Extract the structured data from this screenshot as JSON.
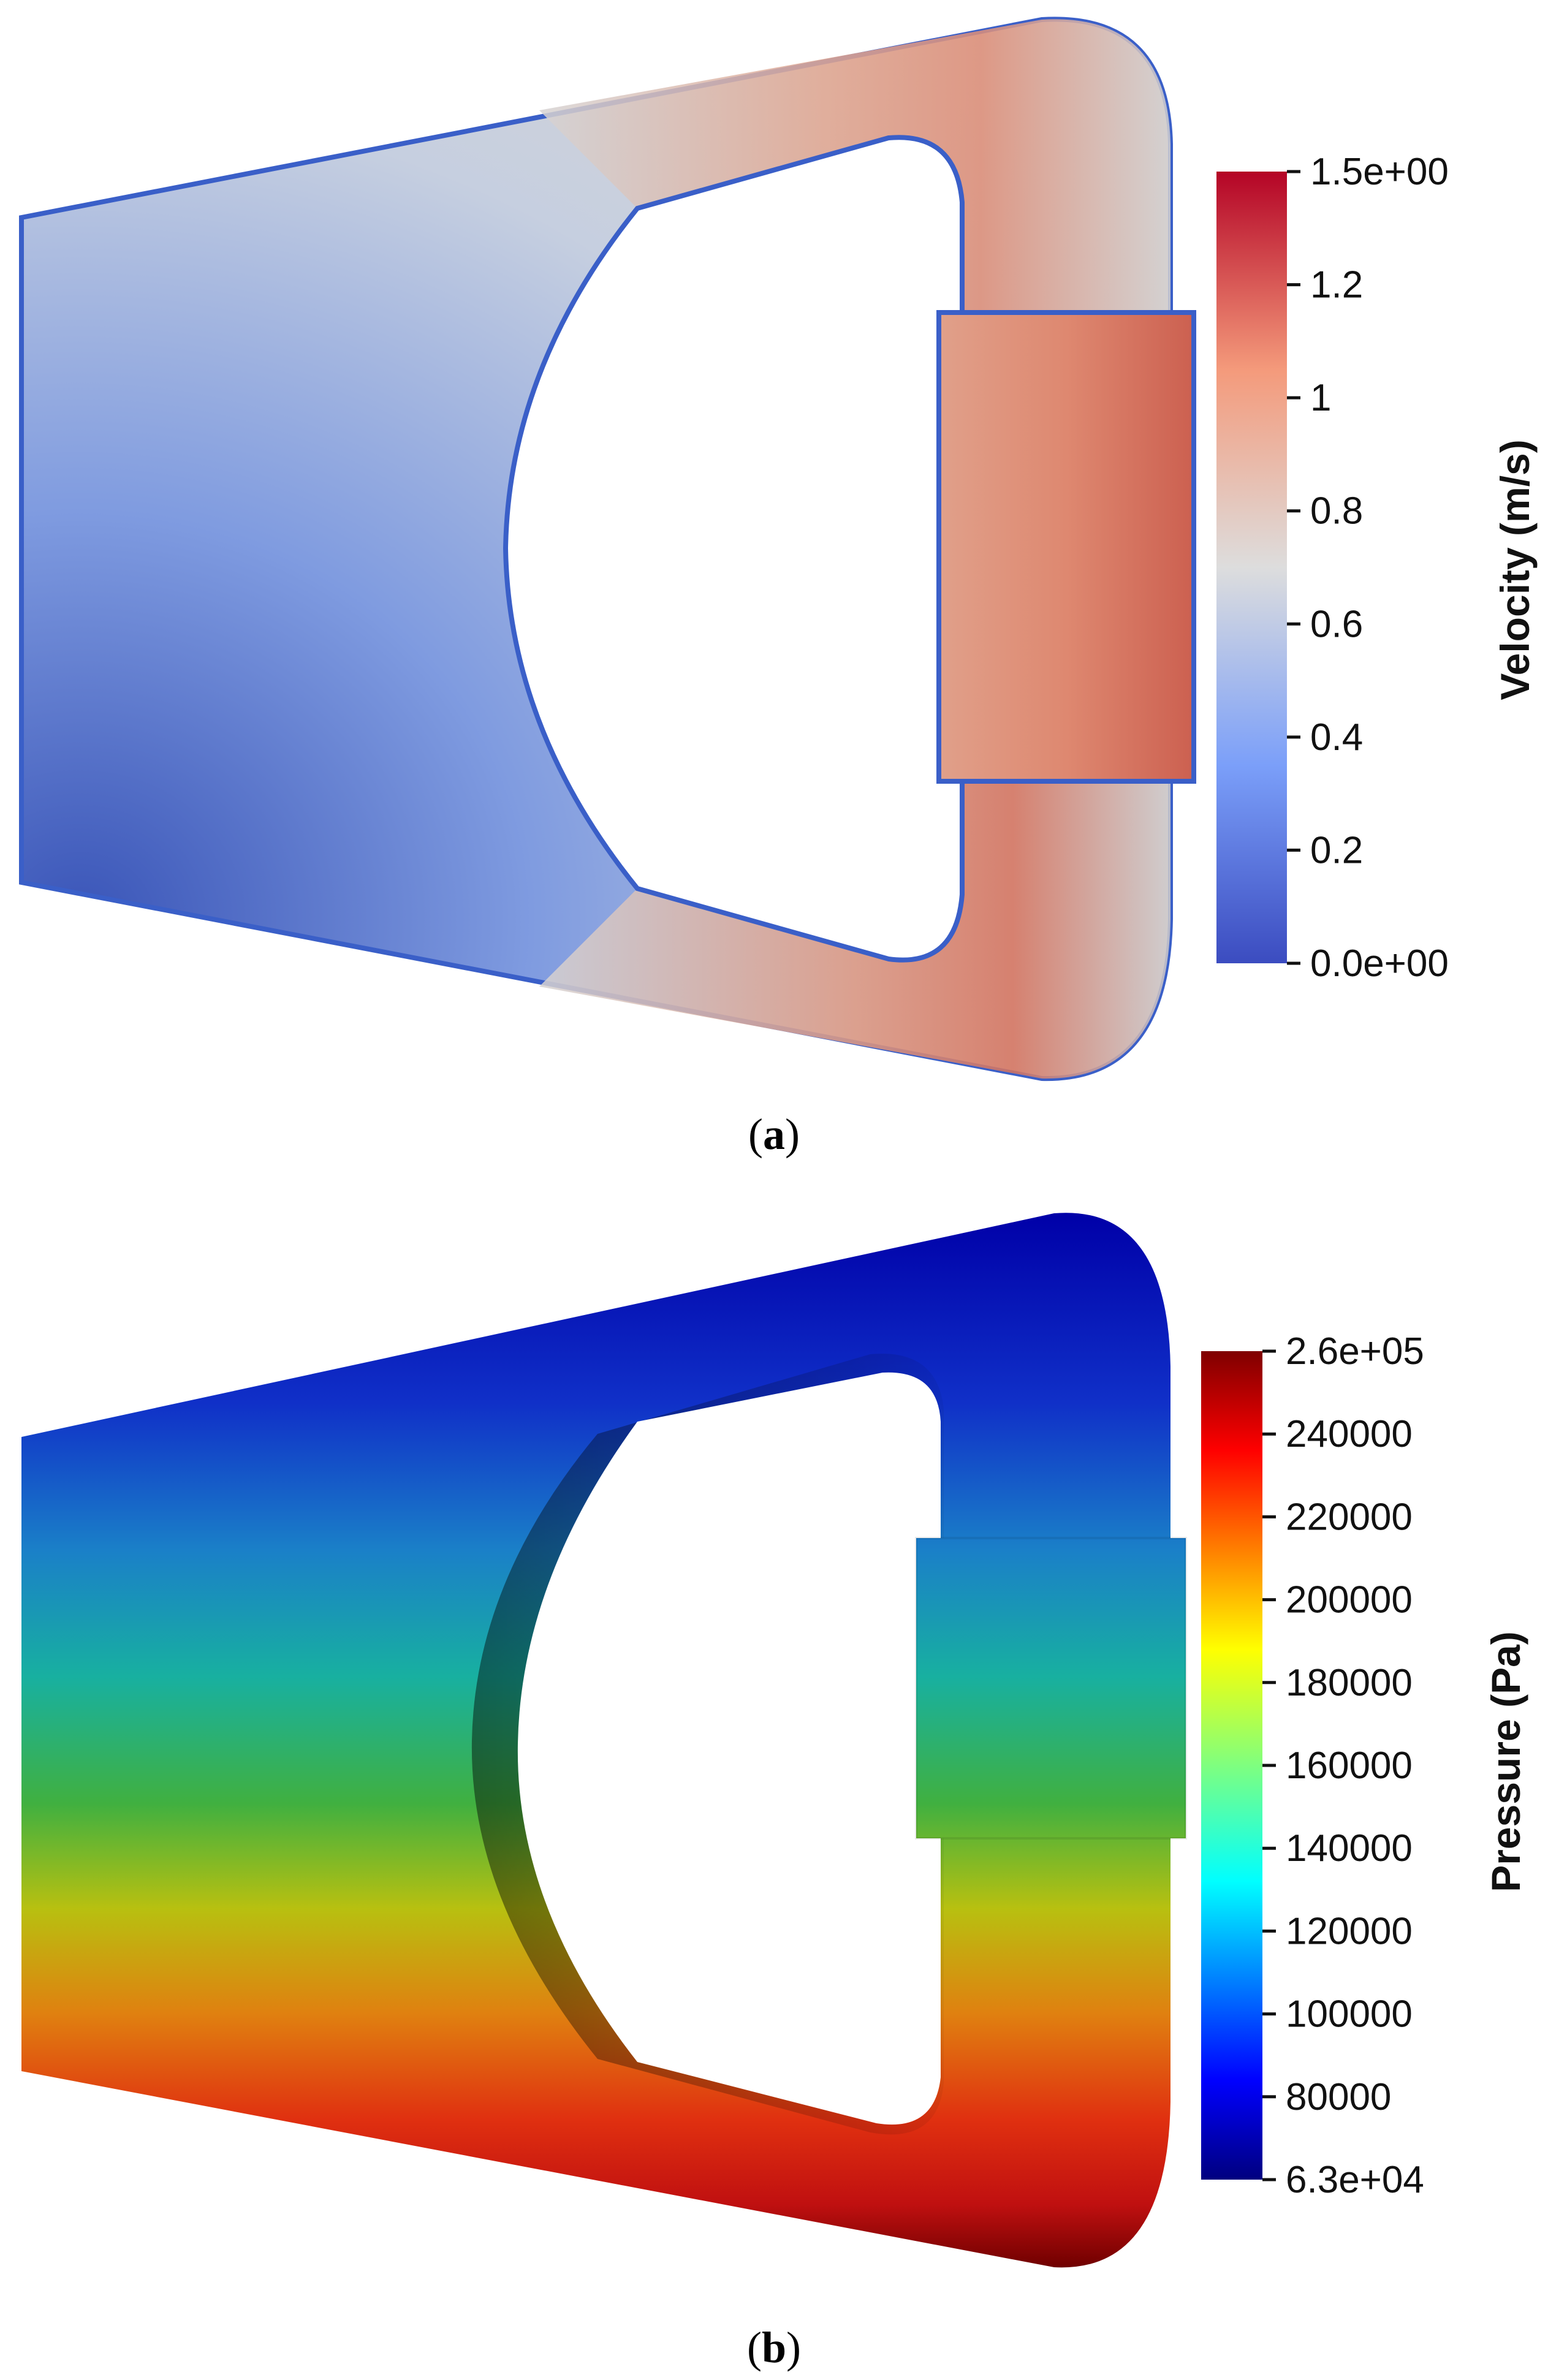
{
  "panels": [
    {
      "id": "a",
      "caption_letter": "a",
      "colorbar": {
        "title": "Velocity (m/s)",
        "ticks": [
          "1.5e+00",
          "1.2",
          "1",
          "0.8",
          "0.6",
          "0.4",
          "0.2",
          "0.0e+00"
        ],
        "colormap": "cool-to-warm",
        "colors": [
          "#3b4cc0",
          "#dddddd",
          "#b40426"
        ]
      }
    },
    {
      "id": "b",
      "caption_letter": "b",
      "colorbar": {
        "title": "Pressure (Pa)",
        "ticks": [
          "2.6e+05",
          "240000",
          "220000",
          "200000",
          "180000",
          "160000",
          "140000",
          "120000",
          "100000",
          "80000",
          "6.3e+04"
        ],
        "colormap": "jet",
        "colors": [
          "#00007f",
          "#0000ff",
          "#00ffff",
          "#7fff7f",
          "#ffff00",
          "#ff0000",
          "#7f0000"
        ]
      }
    }
  ]
}
